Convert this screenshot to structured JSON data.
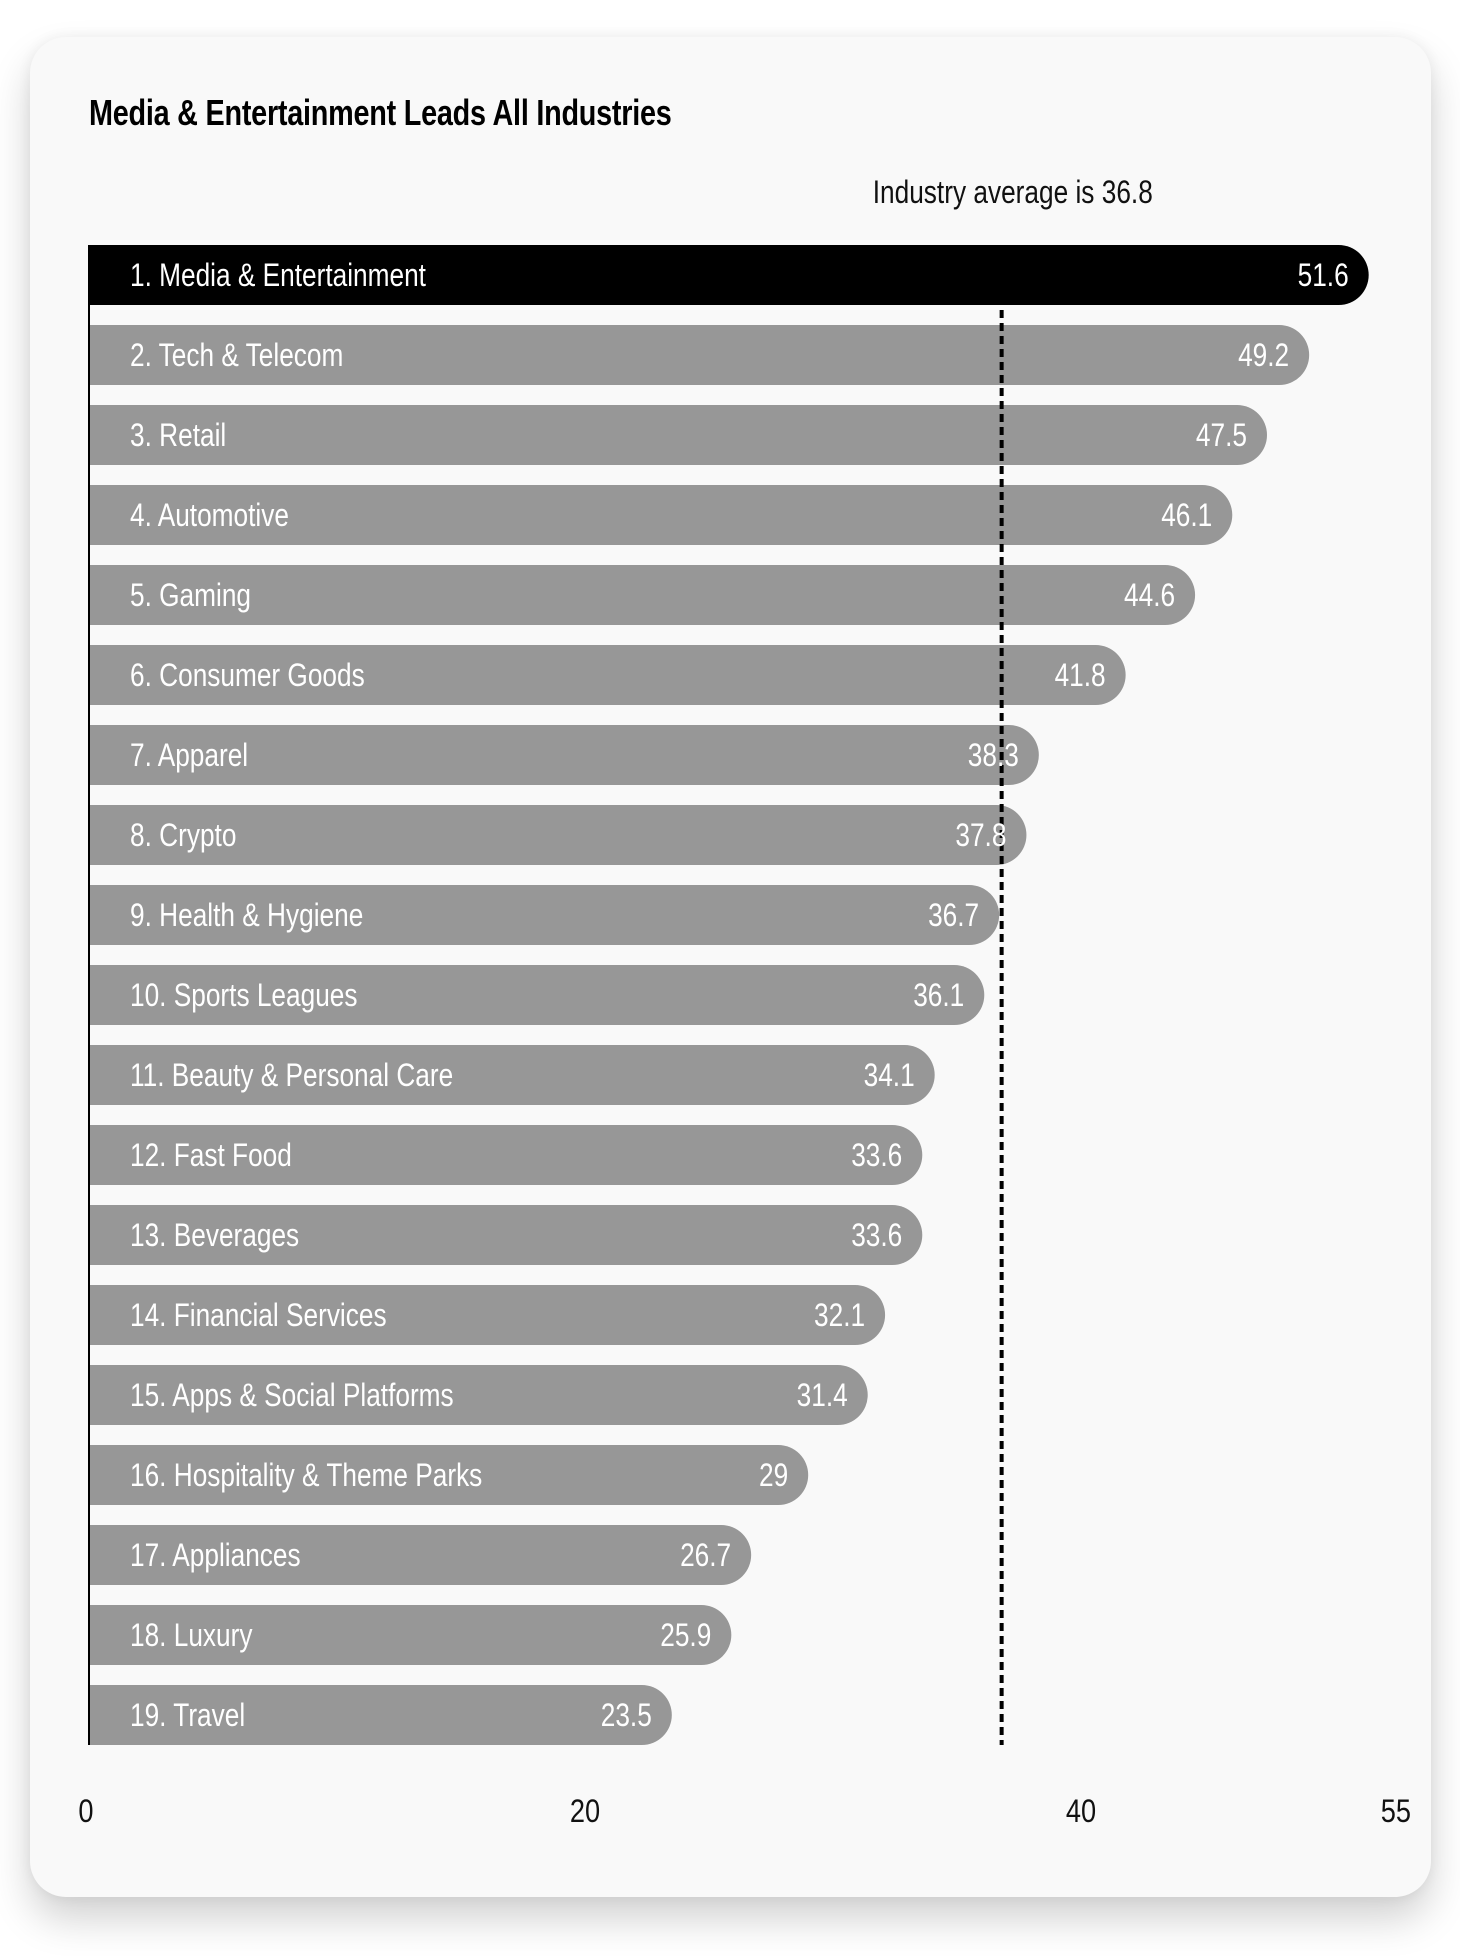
{
  "chart_data": {
    "type": "bar",
    "orientation": "horizontal",
    "title": "Media & Entertainment Leads All Industries",
    "categories": [
      "1. Media & Entertainment",
      "2. Tech & Telecom",
      "3. Retail",
      "4. Automotive",
      "5. Gaming",
      "6. Consumer Goods",
      "7. Apparel",
      "8. Crypto",
      "9. Health & Hygiene",
      "10. Sports Leagues",
      "11. Beauty & Personal Care",
      "12. Fast Food",
      "13. Beverages",
      "14. Financial Services",
      "15. Apps & Social Platforms",
      "16. Hospitality & Theme Parks",
      "17. Appliances",
      "18. Luxury",
      "19. Travel"
    ],
    "values": [
      51.6,
      49.2,
      47.5,
      46.1,
      44.6,
      41.8,
      38.3,
      37.8,
      36.7,
      36.1,
      34.1,
      33.6,
      33.6,
      32.1,
      31.4,
      29,
      26.7,
      25.9,
      23.5
    ],
    "value_labels": [
      "51.6",
      "49.2",
      "47.5",
      "46.1",
      "44.6",
      "41.8",
      "38.3",
      "37.8",
      "36.7",
      "36.1",
      "34.1",
      "33.6",
      "33.6",
      "32.1",
      "31.4",
      "29",
      "26.7",
      "25.9",
      "23.5"
    ],
    "xlim": [
      0,
      55
    ],
    "x_ticks": [
      0,
      20,
      40,
      55
    ],
    "x_tick_labels": [
      "0",
      "20",
      "40",
      "55"
    ],
    "reference_line": {
      "value": 36.8,
      "label": "Industry average is 36.8",
      "style": "dotted"
    },
    "highlight_index": 0,
    "colors": {
      "highlight": "#000000",
      "bar": "#979797",
      "text_on_bar": "#ffffff",
      "background": "#f9f9f9"
    },
    "grid": false,
    "legend": "none"
  }
}
